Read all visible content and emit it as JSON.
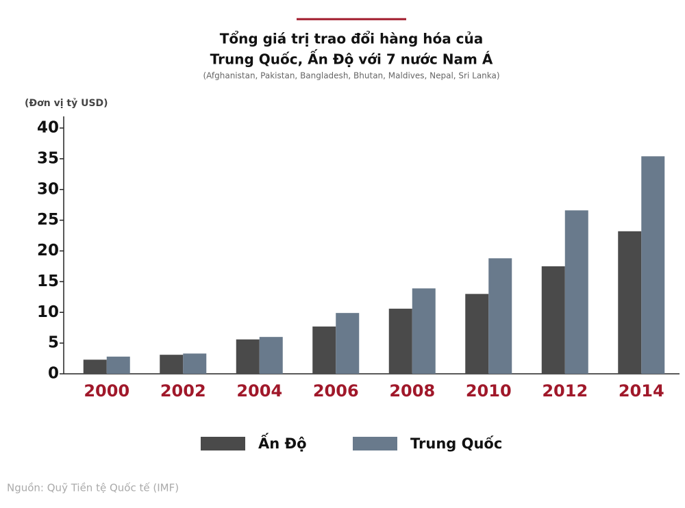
{
  "chart_data": {
    "type": "bar",
    "title": [
      "Tổng giá trị trao đổi hàng hóa của",
      "Trung Quốc, Ấn Độ với 7 nước Nam Á"
    ],
    "subtitle": "(Afghanistan, Pakistan, Bangladesh, Bhutan, Maldives, Nepal, Sri Lanka)",
    "y_label": "(Đơn vị tỷ USD)",
    "source": "Nguồn: Quỹ Tiền tệ Quốc tế (IMF)",
    "categories": [
      "2000",
      "2002",
      "2004",
      "2006",
      "2008",
      "2010",
      "2012",
      "2014"
    ],
    "series": [
      {
        "name": "Ấn Độ",
        "color": "#4a4a4a",
        "values": [
          2.3,
          3.1,
          5.6,
          7.7,
          10.6,
          13.0,
          17.5,
          23.2
        ]
      },
      {
        "name": "Trung Quốc",
        "color": "#697a8c",
        "values": [
          2.8,
          3.3,
          6.0,
          9.9,
          13.9,
          18.8,
          26.6,
          35.4
        ]
      }
    ],
    "ylim": [
      0,
      40
    ],
    "yticks": [
      0,
      5,
      10,
      15,
      20,
      25,
      30,
      35,
      40
    ],
    "grid": false
  }
}
